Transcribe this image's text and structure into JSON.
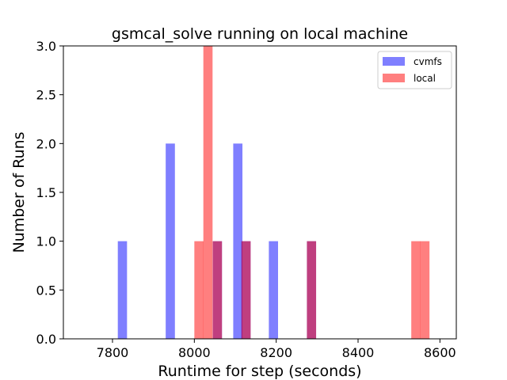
{
  "chart_data": {
    "type": "bar",
    "title": "gsmcal_solve running on local machine",
    "xlabel": "Runtime for step (seconds)",
    "ylabel": "Number of Runs",
    "xlim": [
      7680,
      8640
    ],
    "ylim": [
      0,
      3.0
    ],
    "x_ticks": [
      "7800",
      "8000",
      "8200",
      "8400",
      "8600"
    ],
    "y_ticks": [
      "0.0",
      "0.5",
      "1.0",
      "1.5",
      "2.0",
      "2.5",
      "3.0"
    ],
    "grid": false,
    "legend_position": "top-right",
    "bin_width": 22.5,
    "series": [
      {
        "name": "cvmfs",
        "color": "#0000ff",
        "alpha": 0.5,
        "bins": [
          {
            "start": 7813,
            "count": 1
          },
          {
            "start": 7930,
            "count": 2
          },
          {
            "start": 8045,
            "count": 1
          },
          {
            "start": 8095,
            "count": 2
          },
          {
            "start": 8115,
            "count": 1
          },
          {
            "start": 8182,
            "count": 1
          },
          {
            "start": 8275,
            "count": 1
          }
        ]
      },
      {
        "name": "local",
        "color": "#ff0000",
        "alpha": 0.5,
        "bins": [
          {
            "start": 8000,
            "count": 1
          },
          {
            "start": 8022,
            "count": 3
          },
          {
            "start": 8045,
            "count": 1
          },
          {
            "start": 8115,
            "count": 1
          },
          {
            "start": 8275,
            "count": 1
          },
          {
            "start": 8530,
            "count": 1
          },
          {
            "start": 8552,
            "count": 1
          }
        ]
      }
    ]
  }
}
